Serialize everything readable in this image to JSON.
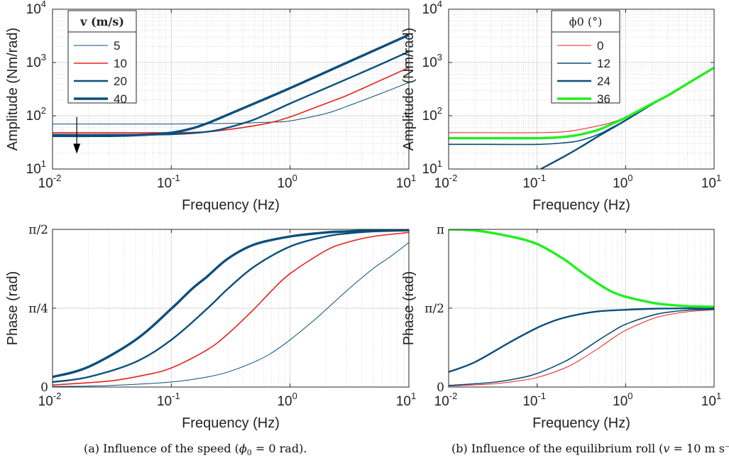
{
  "captions": {
    "a_prefix": "(a) Influence of the speed (",
    "a_phi": "ϕ",
    "a_sub": "0",
    "a_suffix": " = 0 rad).",
    "b_prefix": "(b) Influence of the equilibrium roll (",
    "b_var": "v",
    "b_suffix": " = 10 m s⁻"
  },
  "colors": {
    "blue": "#0b4f7c",
    "red": "#e8211d",
    "green": "#22ee22",
    "axis": "#262626",
    "grid": "#bdbdbd"
  },
  "chart_data": [
    {
      "id": "a-amplitude",
      "type": "line",
      "xscale": "log",
      "yscale": "log",
      "xlim": [
        0.01,
        10
      ],
      "ylim": [
        10,
        10000
      ],
      "xlabel": "Frequency (Hz)",
      "ylabel": "Amplitude (Nm/rad)",
      "xticks": [
        {
          "base": "10",
          "exp": "-2"
        },
        {
          "base": "10",
          "exp": "-1"
        },
        {
          "base": "10",
          "exp": "0"
        },
        {
          "base": "10",
          "exp": "1"
        }
      ],
      "yticks": [
        {
          "base": "10",
          "exp": "1"
        },
        {
          "base": "10",
          "exp": "2"
        },
        {
          "base": "10",
          "exp": "3"
        },
        {
          "base": "10",
          "exp": "4"
        }
      ],
      "grid": true,
      "legend": {
        "title": "v (m/s)",
        "position": "top-left"
      },
      "annotation": "downward arrow indicating decreasing low-frequency amplitude with speed",
      "series": [
        {
          "name": "5",
          "color": "#0b4f7c",
          "width": 1,
          "x": [
            0.01,
            0.03,
            0.1,
            0.3,
            0.7,
            1,
            2,
            3,
            5,
            10
          ],
          "y": [
            70,
            70,
            70,
            72,
            76,
            80,
            110,
            150,
            230,
            420
          ]
        },
        {
          "name": "10",
          "color": "#e8211d",
          "width": 1.6,
          "x": [
            0.01,
            0.03,
            0.1,
            0.2,
            0.3,
            0.5,
            0.7,
            1,
            2,
            3,
            5,
            10
          ],
          "y": [
            48,
            48,
            48,
            50,
            55,
            65,
            75,
            95,
            170,
            240,
            400,
            800
          ]
        },
        {
          "name": "20",
          "color": "#0b4f7c",
          "width": 2.4,
          "x": [
            0.01,
            0.03,
            0.1,
            0.2,
            0.3,
            0.5,
            1,
            2,
            5,
            10
          ],
          "y": [
            44,
            44,
            45,
            50,
            60,
            85,
            170,
            330,
            800,
            1600
          ]
        },
        {
          "name": "40",
          "color": "#0b4f7c",
          "width": 3.4,
          "x": [
            0.01,
            0.03,
            0.06,
            0.1,
            0.15,
            0.2,
            0.3,
            0.5,
            1,
            2,
            5,
            10
          ],
          "y": [
            42,
            42,
            44,
            48,
            58,
            72,
            105,
            170,
            330,
            660,
            1650,
            3300
          ]
        }
      ]
    },
    {
      "id": "b-amplitude",
      "type": "line",
      "xscale": "log",
      "yscale": "log",
      "xlim": [
        0.01,
        10
      ],
      "ylim": [
        10,
        10000
      ],
      "xlabel": "Frequency (Hz)",
      "ylabel": "Amplitude (Nm/rad)",
      "xticks": [
        {
          "base": "10",
          "exp": "-2"
        },
        {
          "base": "10",
          "exp": "-1"
        },
        {
          "base": "10",
          "exp": "0"
        },
        {
          "base": "10",
          "exp": "1"
        }
      ],
      "yticks": [
        {
          "base": "10",
          "exp": "1"
        },
        {
          "base": "10",
          "exp": "2"
        },
        {
          "base": "10",
          "exp": "3"
        },
        {
          "base": "10",
          "exp": "4"
        }
      ],
      "grid": true,
      "legend": {
        "title": "ϕ0 (°)",
        "position": "top-left"
      },
      "series": [
        {
          "name": "0",
          "color": "#e8211d",
          "width": 1,
          "x": [
            0.01,
            0.03,
            0.1,
            0.2,
            0.3,
            0.5,
            0.7,
            1,
            2,
            3,
            5,
            10
          ],
          "y": [
            48,
            48,
            48,
            50,
            55,
            65,
            75,
            95,
            170,
            240,
            400,
            800
          ]
        },
        {
          "name": "12",
          "color": "#0b4f7c",
          "width": 1.6,
          "x": [
            0.01,
            0.03,
            0.1,
            0.2,
            0.3,
            0.5,
            0.7,
            1,
            2,
            3,
            5,
            10
          ],
          "y": [
            29,
            29,
            29,
            31,
            34,
            45,
            60,
            82,
            165,
            240,
            400,
            800
          ]
        },
        {
          "name": "24",
          "color": "#0b4f7c",
          "width": 2.4,
          "x": [
            0.11,
            0.2,
            0.3,
            0.5,
            0.7,
            1,
            2,
            3,
            5,
            10
          ],
          "y": [
            10,
            17,
            25,
            42,
            58,
            82,
            165,
            240,
            400,
            800
          ]
        },
        {
          "name": "36",
          "color": "#22ee22",
          "width": 3.4,
          "x": [
            0.01,
            0.03,
            0.1,
            0.2,
            0.3,
            0.5,
            0.7,
            1,
            2,
            3,
            5,
            10
          ],
          "y": [
            38,
            38,
            38,
            40,
            44,
            55,
            70,
            92,
            170,
            240,
            400,
            800
          ]
        }
      ]
    },
    {
      "id": "a-phase",
      "type": "line",
      "xscale": "log",
      "yscale": "linear",
      "xlim": [
        0.01,
        10
      ],
      "ylim": [
        0,
        1.5708
      ],
      "xlabel": "Frequency (Hz)",
      "ylabel": "Phase (rad)",
      "xticks": [
        {
          "base": "10",
          "exp": "-2"
        },
        {
          "base": "10",
          "exp": "-1"
        },
        {
          "base": "10",
          "exp": "0"
        },
        {
          "base": "10",
          "exp": "1"
        }
      ],
      "yticks": [
        {
          "value": 0,
          "label": "0"
        },
        {
          "value": 0.7854,
          "label": "π/4"
        },
        {
          "value": 1.5708,
          "label": "π/2"
        }
      ],
      "grid": true,
      "series": [
        {
          "name": "5",
          "color": "#0b4f7c",
          "width": 1,
          "x": [
            0.01,
            0.03,
            0.1,
            0.2,
            0.3,
            0.5,
            0.7,
            1,
            1.5,
            2,
            3,
            5,
            7,
            10
          ],
          "y": [
            0.005,
            0.015,
            0.05,
            0.1,
            0.15,
            0.25,
            0.34,
            0.47,
            0.64,
            0.77,
            0.96,
            1.18,
            1.3,
            1.44
          ]
        },
        {
          "name": "10",
          "color": "#e8211d",
          "width": 1.6,
          "x": [
            0.01,
            0.03,
            0.06,
            0.1,
            0.2,
            0.3,
            0.5,
            0.7,
            1,
            2,
            3,
            5,
            10
          ],
          "y": [
            0.02,
            0.06,
            0.12,
            0.19,
            0.37,
            0.53,
            0.78,
            0.96,
            1.13,
            1.36,
            1.44,
            1.5,
            1.54
          ]
        },
        {
          "name": "20",
          "color": "#0b4f7c",
          "width": 2.4,
          "x": [
            0.01,
            0.02,
            0.05,
            0.1,
            0.2,
            0.3,
            0.5,
            1,
            2,
            3,
            5,
            10
          ],
          "y": [
            0.05,
            0.1,
            0.25,
            0.47,
            0.78,
            0.98,
            1.2,
            1.4,
            1.5,
            1.53,
            1.55,
            1.56
          ]
        },
        {
          "name": "40",
          "color": "#0b4f7c",
          "width": 3.4,
          "x": [
            0.01,
            0.02,
            0.05,
            0.1,
            0.15,
            0.2,
            0.3,
            0.5,
            1,
            2,
            3,
            5,
            10
          ],
          "y": [
            0.1,
            0.2,
            0.47,
            0.78,
            0.98,
            1.1,
            1.28,
            1.42,
            1.5,
            1.54,
            1.55,
            1.56,
            1.565
          ]
        }
      ]
    },
    {
      "id": "b-phase",
      "type": "line",
      "xscale": "log",
      "yscale": "linear",
      "xlim": [
        0.01,
        10
      ],
      "ylim": [
        0,
        3.1416
      ],
      "xlabel": "Frequency (Hz)",
      "ylabel": "Phase (rad)",
      "xticks": [
        {
          "base": "10",
          "exp": "-2"
        },
        {
          "base": "10",
          "exp": "-1"
        },
        {
          "base": "10",
          "exp": "0"
        },
        {
          "base": "10",
          "exp": "1"
        }
      ],
      "yticks": [
        {
          "value": 0,
          "label": "0"
        },
        {
          "value": 1.5708,
          "label": "π/2"
        },
        {
          "value": 3.1416,
          "label": "π"
        }
      ],
      "grid": true,
      "series": [
        {
          "name": "0",
          "color": "#e8211d",
          "width": 1,
          "x": [
            0.01,
            0.03,
            0.06,
            0.1,
            0.2,
            0.3,
            0.5,
            0.7,
            1,
            2,
            3,
            5,
            10
          ],
          "y": [
            0.02,
            0.06,
            0.12,
            0.19,
            0.37,
            0.53,
            0.78,
            0.96,
            1.13,
            1.36,
            1.44,
            1.5,
            1.54
          ]
        },
        {
          "name": "12",
          "color": "#0b4f7c",
          "width": 1.6,
          "x": [
            0.01,
            0.03,
            0.06,
            0.1,
            0.2,
            0.3,
            0.5,
            0.7,
            1,
            2,
            3,
            5,
            10
          ],
          "y": [
            0.03,
            0.09,
            0.17,
            0.27,
            0.5,
            0.68,
            0.94,
            1.1,
            1.25,
            1.43,
            1.49,
            1.53,
            1.55
          ]
        },
        {
          "name": "24",
          "color": "#0b4f7c",
          "width": 2.4,
          "x": [
            0.01,
            0.02,
            0.05,
            0.1,
            0.15,
            0.2,
            0.3,
            0.5,
            1,
            2,
            3,
            5,
            10
          ],
          "y": [
            0.3,
            0.5,
            0.9,
            1.18,
            1.31,
            1.38,
            1.45,
            1.51,
            1.54,
            1.56,
            1.565,
            1.568,
            1.57
          ]
        },
        {
          "name": "36",
          "color": "#22ee22",
          "width": 3.4,
          "x": [
            0.01,
            0.02,
            0.05,
            0.1,
            0.2,
            0.3,
            0.5,
            0.7,
            1,
            2,
            3,
            5,
            10
          ],
          "y": [
            3.14,
            3.12,
            3.0,
            2.85,
            2.55,
            2.32,
            2.05,
            1.9,
            1.8,
            1.68,
            1.64,
            1.61,
            1.6
          ]
        }
      ]
    }
  ]
}
